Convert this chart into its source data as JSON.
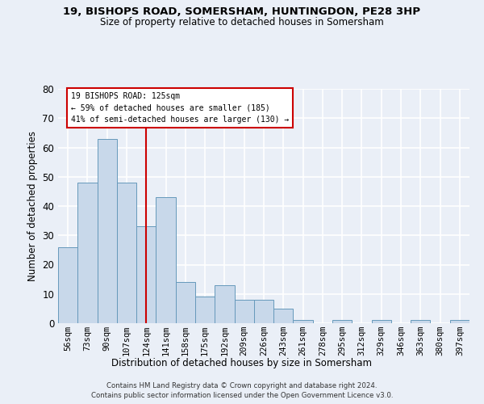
{
  "title1": "19, BISHOPS ROAD, SOMERSHAM, HUNTINGDON, PE28 3HP",
  "title2": "Size of property relative to detached houses in Somersham",
  "xlabel": "Distribution of detached houses by size in Somersham",
  "ylabel": "Number of detached properties",
  "bar_color": "#c8d8ea",
  "bar_edge_color": "#6699bb",
  "categories": [
    "56sqm",
    "73sqm",
    "90sqm",
    "107sqm",
    "124sqm",
    "141sqm",
    "158sqm",
    "175sqm",
    "192sqm",
    "209sqm",
    "226sqm",
    "243sqm",
    "261sqm",
    "278sqm",
    "295sqm",
    "312sqm",
    "329sqm",
    "346sqm",
    "363sqm",
    "380sqm",
    "397sqm"
  ],
  "values": [
    26,
    48,
    63,
    48,
    33,
    43,
    14,
    9,
    13,
    8,
    8,
    5,
    1,
    0,
    1,
    0,
    1,
    0,
    1,
    0,
    1
  ],
  "vline_color": "#cc0000",
  "vline_index": 4.5,
  "annotation_line1": "19 BISHOPS ROAD: 125sqm",
  "annotation_line2": "← 59% of detached houses are smaller (185)",
  "annotation_line3": "41% of semi-detached houses are larger (130) →",
  "annotation_color": "#cc0000",
  "annotation_bg": "#ffffff",
  "ylim": [
    0,
    80
  ],
  "yticks": [
    0,
    10,
    20,
    30,
    40,
    50,
    60,
    70,
    80
  ],
  "footer1": "Contains HM Land Registry data © Crown copyright and database right 2024.",
  "footer2": "Contains public sector information licensed under the Open Government Licence v3.0.",
  "bg_color": "#eaeff7",
  "grid_color": "#ffffff"
}
